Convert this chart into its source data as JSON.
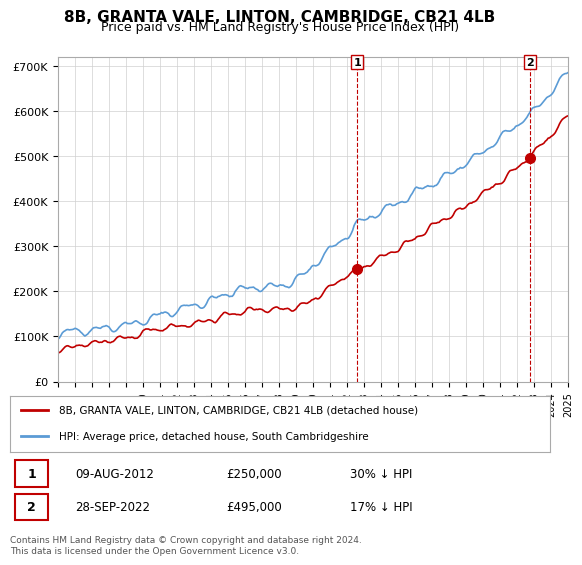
{
  "title": "8B, GRANTA VALE, LINTON, CAMBRIDGE, CB21 4LB",
  "subtitle": "Price paid vs. HM Land Registry's House Price Index (HPI)",
  "ylabel": "",
  "ylim": [
    0,
    720000
  ],
  "yticks": [
    0,
    100000,
    200000,
    300000,
    400000,
    500000,
    600000,
    700000
  ],
  "ytick_labels": [
    "£0",
    "£100K",
    "£200K",
    "£300K",
    "£400K",
    "£500K",
    "£600K",
    "£700K"
  ],
  "hpi_color": "#5b9bd5",
  "property_color": "#c00000",
  "marker1_date_idx": 17.6,
  "marker2_date_idx": 27.6,
  "transaction1": {
    "date": "09-AUG-2012",
    "price": 250000,
    "label": "30% ↓ HPI"
  },
  "transaction2": {
    "date": "28-SEP-2022",
    "price": 495000,
    "label": "17% ↓ HPI"
  },
  "legend_label1": "8B, GRANTA VALE, LINTON, CAMBRIDGE, CB21 4LB (detached house)",
  "legend_label2": "HPI: Average price, detached house, South Cambridgeshire",
  "footnote": "Contains HM Land Registry data © Crown copyright and database right 2024.\nThis data is licensed under the Open Government Licence v3.0.",
  "background_color": "#ffffff",
  "grid_color": "#d0d0d0",
  "title_fontsize": 11,
  "subtitle_fontsize": 9
}
